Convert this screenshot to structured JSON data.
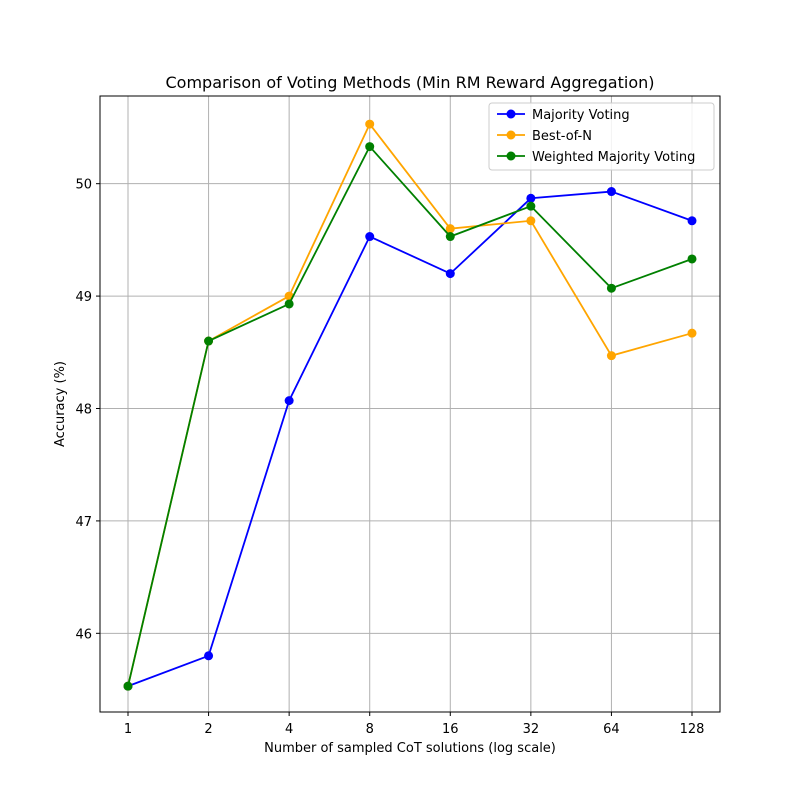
{
  "chart_data": {
    "type": "line",
    "title": "Comparison of Voting Methods (Min RM Reward Aggregation)",
    "xlabel": "Number of sampled CoT solutions (log scale)",
    "ylabel": "Accuracy (%)",
    "x_scale": "log2",
    "x": [
      1,
      2,
      4,
      8,
      16,
      32,
      64,
      128
    ],
    "x_tick_labels": [
      "1",
      "2",
      "4",
      "8",
      "16",
      "32",
      "64",
      "128"
    ],
    "y_ticks": [
      46,
      47,
      48,
      49,
      50
    ],
    "y_tick_labels": [
      "46",
      "47",
      "48",
      "49",
      "50"
    ],
    "ylim": [
      45.3,
      50.78
    ],
    "grid": true,
    "legend_position": "top-right",
    "series": [
      {
        "name": "Majority Voting",
        "color": "#0000ff",
        "values": [
          45.53,
          45.8,
          48.07,
          49.53,
          49.2,
          49.87,
          49.93,
          49.67
        ]
      },
      {
        "name": "Best-of-N",
        "color": "#ffa500",
        "values": [
          45.53,
          48.6,
          49.0,
          50.53,
          49.6,
          49.67,
          48.47,
          48.67
        ]
      },
      {
        "name": "Weighted Majority Voting",
        "color": "#008000",
        "values": [
          45.53,
          48.6,
          48.93,
          50.33,
          49.53,
          49.8,
          49.07,
          49.33
        ]
      }
    ]
  }
}
